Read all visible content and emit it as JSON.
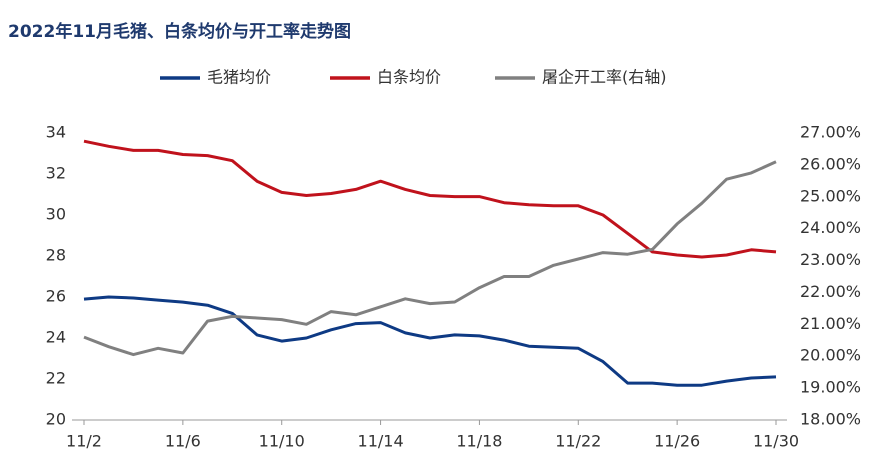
{
  "chart_data": {
    "type": "line",
    "title": "2022年11月毛猪、白条均价与开工率走势图",
    "categories": [
      "11/2",
      null,
      null,
      null,
      "11/6",
      null,
      null,
      null,
      "11/10",
      null,
      null,
      null,
      "11/14",
      null,
      null,
      null,
      "11/18",
      null,
      null,
      null,
      "11/22",
      null,
      null,
      null,
      "11/26",
      null,
      null,
      null,
      "11/30"
    ],
    "series": [
      {
        "name": "毛猪均价",
        "color": "#0e3a84",
        "values": [
          25.9,
          26.0,
          25.95,
          25.85,
          25.75,
          25.6,
          25.2,
          24.15,
          23.85,
          24.0,
          24.4,
          24.7,
          24.75,
          24.25,
          24.0,
          24.15,
          24.1,
          23.9,
          23.6,
          23.55,
          23.5,
          22.85,
          21.8,
          21.8,
          21.7,
          21.7,
          21.9,
          22.05,
          22.1
        ]
      },
      {
        "name": "白条均价",
        "color": "#c0121c",
        "values": [
          33.6,
          33.35,
          33.15,
          33.15,
          32.95,
          32.9,
          32.65,
          31.65,
          31.1,
          30.95,
          31.05,
          31.25,
          31.65,
          31.25,
          30.95,
          30.9,
          30.9,
          30.6,
          30.5,
          30.45,
          30.45,
          30.0,
          29.1,
          28.2,
          28.05,
          27.95,
          28.05,
          28.3,
          28.2
        ]
      },
      {
        "name": "屠企开工率(右轴)",
        "color": "#808080",
        "axis": "y2",
        "values": [
          20.6,
          20.3,
          20.05,
          20.25,
          20.1,
          21.1,
          21.25,
          21.2,
          21.15,
          21.0,
          21.4,
          21.3,
          21.55,
          21.8,
          21.65,
          21.7,
          22.15,
          22.5,
          22.5,
          22.85,
          23.05,
          23.25,
          23.2,
          23.35,
          24.15,
          24.8,
          25.55,
          25.75,
          26.1
        ]
      }
    ],
    "ylim": [
      20,
      34
    ],
    "yticks": [
      20,
      22,
      24,
      26,
      28,
      30,
      32,
      34
    ],
    "y2lim": [
      18,
      27
    ],
    "y2ticks": [
      {
        "value": 18,
        "label": "18.00%"
      },
      {
        "value": 19,
        "label": "19.00%"
      },
      {
        "value": 20,
        "label": "20.00%"
      },
      {
        "value": 21,
        "label": "21.00%"
      },
      {
        "value": 22,
        "label": "22.00%"
      },
      {
        "value": 23,
        "label": "23.00%"
      },
      {
        "value": 24,
        "label": "24.00%"
      },
      {
        "value": 25,
        "label": "25.00%"
      },
      {
        "value": 26,
        "label": "26.00%"
      },
      {
        "value": 27,
        "label": "27.00%"
      }
    ],
    "legend": "top",
    "grid": false
  }
}
